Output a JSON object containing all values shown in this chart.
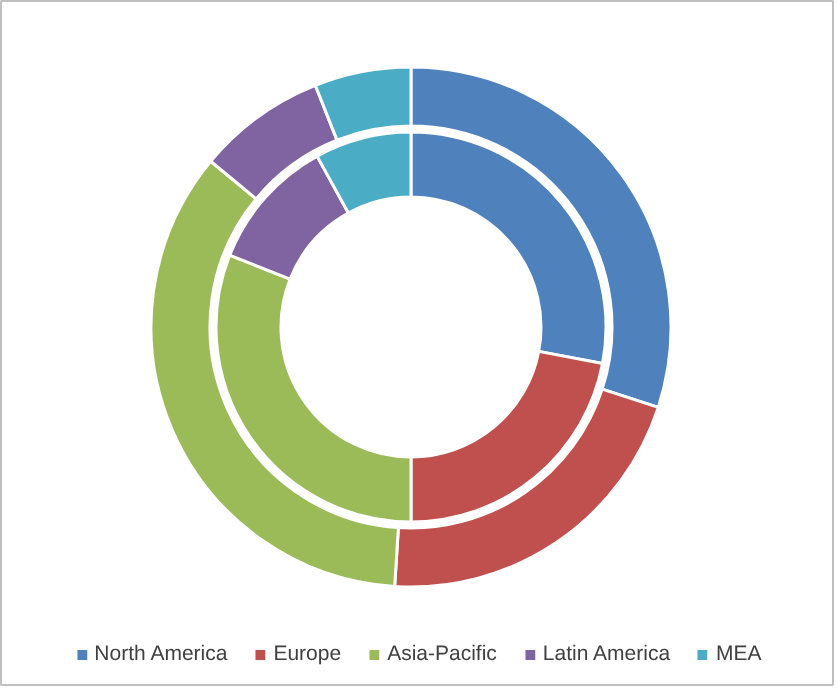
{
  "chart_data": {
    "type": "donut",
    "categories": [
      "North America",
      "Europe",
      "Asia-Pacific",
      "Latin America",
      "MEA"
    ],
    "colors": [
      "#4f81bd",
      "#c0504d",
      "#9bbb59",
      "#8064a2",
      "#4bacc6"
    ],
    "series": [
      {
        "values": [
          30,
          21,
          35,
          8,
          6
        ]
      },
      {
        "values": [
          28,
          22,
          31,
          11,
          8
        ]
      }
    ],
    "legend": "bottom"
  }
}
